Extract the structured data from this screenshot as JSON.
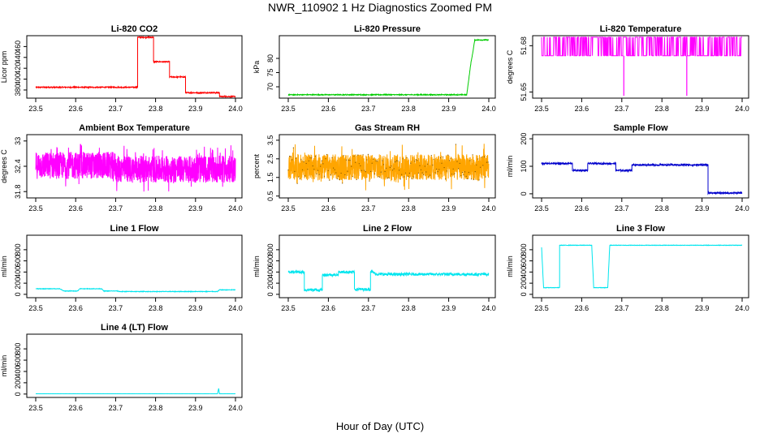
{
  "title": "NWR_110902  1 Hz Diagnostics Zoomed PM",
  "xlabel": "Hour of Day (UTC)",
  "chart_data": [
    {
      "type": "line",
      "title": "Li-820 CO2",
      "ylabel": "Licor ppm",
      "color": "#ff0000",
      "xlim": [
        23.5,
        24.0
      ],
      "xticks": [
        "23.5",
        "23.6",
        "23.7",
        "23.8",
        "23.9",
        "24.0"
      ],
      "ylim": [
        365,
        480
      ],
      "yticks": [
        380,
        400,
        420,
        440,
        460
      ],
      "series": [
        {
          "kind": "step",
          "noise": 1,
          "points": [
            [
              23.5,
              385
            ],
            [
              23.755,
              385
            ],
            [
              23.755,
              477
            ],
            [
              23.795,
              477
            ],
            [
              23.795,
              432
            ],
            [
              23.835,
              432
            ],
            [
              23.835,
              404
            ],
            [
              23.875,
              404
            ],
            [
              23.875,
              375
            ],
            [
              23.96,
              375
            ],
            [
              23.96,
              368
            ],
            [
              24.0,
              368
            ]
          ]
        }
      ]
    },
    {
      "type": "line",
      "title": "Li-820 Pressure",
      "ylabel": "kPa",
      "color": "#00cc00",
      "xlim": [
        23.5,
        24.0
      ],
      "xticks": [
        "23.5",
        "23.6",
        "23.7",
        "23.8",
        "23.9",
        "24.0"
      ],
      "ylim": [
        66,
        88
      ],
      "yticks": [
        70,
        75,
        80
      ],
      "series": [
        {
          "kind": "step",
          "noise": 0.15,
          "points": [
            [
              23.5,
              67.2
            ],
            [
              23.935,
              67.2
            ],
            [
              23.945,
              67.2
            ],
            [
              23.955,
              78
            ],
            [
              23.96,
              82
            ],
            [
              23.965,
              86.5
            ],
            [
              24.0,
              86.5
            ]
          ]
        }
      ]
    },
    {
      "type": "line",
      "title": "Li-820 Temperature",
      "ylabel": "degrees C",
      "color": "#ff00ff",
      "xlim": [
        23.5,
        24.0
      ],
      "xticks": [
        "23.5",
        "23.6",
        "23.7",
        "23.8",
        "23.9",
        "24.0"
      ],
      "ylim": [
        51.646,
        51.6865
      ],
      "yticks": [
        "51.65",
        "51.68"
      ],
      "series": [
        {
          "kind": "toggle",
          "low": 51.6735,
          "high": 51.6855,
          "spikes": [
            [
              23.705,
              51.6475
            ],
            [
              23.862,
              51.6475
            ]
          ]
        }
      ]
    },
    {
      "type": "line",
      "title": "Ambient Box Temperature",
      "ylabel": "degrees C",
      "color": "#ff00ff",
      "xlim": [
        23.5,
        24.0
      ],
      "xticks": [
        "23.5",
        "23.6",
        "23.7",
        "23.8",
        "23.9",
        "24.0"
      ],
      "ylim": [
        31.65,
        33.15
      ],
      "yticks": [
        31.8,
        32.4,
        33.0
      ],
      "series": [
        {
          "kind": "noise",
          "segments": [
            [
              23.5,
              23.7,
              32.42
            ],
            [
              23.7,
              24.0,
              32.33
            ]
          ],
          "amp": 0.32
        }
      ]
    },
    {
      "type": "line",
      "title": "Gas Stream RH",
      "ylabel": "percent",
      "color": "#ffa500",
      "xlim": [
        23.5,
        24.0
      ],
      "xticks": [
        "23.5",
        "23.6",
        "23.7",
        "23.8",
        "23.9",
        "24.0"
      ],
      "ylim": [
        0.4,
        3.8
      ],
      "yticks": [
        0.5,
        1.5,
        2.5,
        3.5
      ],
      "series": [
        {
          "kind": "noise",
          "segments": [
            [
              23.5,
              24.0,
              2.05
            ]
          ],
          "amp": 0.7,
          "dotted": true,
          "dotColor": "#7a5000"
        }
      ]
    },
    {
      "type": "line",
      "title": "Sample Flow",
      "ylabel": "ml/min",
      "color": "#0000cc",
      "xlim": [
        23.5,
        24.0
      ],
      "xticks": [
        "23.5",
        "23.6",
        "23.7",
        "23.8",
        "23.9",
        "24.0"
      ],
      "ylim": [
        -15,
        215
      ],
      "yticks": [
        0,
        100,
        200
      ],
      "series": [
        {
          "kind": "step",
          "noise": 3,
          "points": [
            [
              23.5,
              110
            ],
            [
              23.577,
              110
            ],
            [
              23.577,
              85
            ],
            [
              23.615,
              85
            ],
            [
              23.615,
              110
            ],
            [
              23.685,
              110
            ],
            [
              23.685,
              85
            ],
            [
              23.725,
              85
            ],
            [
              23.725,
              105
            ],
            [
              23.915,
              105
            ],
            [
              23.915,
              3
            ],
            [
              24.0,
              3
            ]
          ]
        }
      ]
    },
    {
      "type": "line",
      "title": "Line 1 Flow",
      "ylabel": "ml/min",
      "color": "#00e5ee",
      "xlim": [
        23.5,
        24.0
      ],
      "xticks": [
        "23.5",
        "23.6",
        "23.7",
        "23.8",
        "23.9",
        "24.0"
      ],
      "ylim": [
        -60,
        1060
      ],
      "yticks": [
        0,
        200,
        400,
        600,
        800
      ],
      "series": [
        {
          "kind": "step",
          "noise": 5,
          "points": [
            [
              23.5,
              100
            ],
            [
              23.56,
              100
            ],
            [
              23.57,
              60
            ],
            [
              23.605,
              60
            ],
            [
              23.61,
              100
            ],
            [
              23.665,
              100
            ],
            [
              23.67,
              60
            ],
            [
              23.705,
              60
            ],
            [
              23.71,
              50
            ],
            [
              23.955,
              50
            ],
            [
              23.96,
              80
            ],
            [
              24.0,
              80
            ]
          ]
        }
      ]
    },
    {
      "type": "line",
      "title": "Line 2 Flow",
      "ylabel": "ml/min",
      "color": "#00e5ee",
      "xlim": [
        23.5,
        24.0
      ],
      "xticks": [
        "23.5",
        "23.6",
        "23.7",
        "23.8",
        "23.9",
        "24.0"
      ],
      "ylim": [
        -60,
        1060
      ],
      "yticks": [
        0,
        200,
        400,
        600,
        800
      ],
      "series": [
        {
          "kind": "step",
          "noise": 25,
          "points": [
            [
              23.5,
              400
            ],
            [
              23.54,
              400
            ],
            [
              23.54,
              80
            ],
            [
              23.585,
              80
            ],
            [
              23.585,
              350
            ],
            [
              23.625,
              350
            ],
            [
              23.625,
              400
            ],
            [
              23.665,
              400
            ],
            [
              23.665,
              90
            ],
            [
              23.705,
              90
            ],
            [
              23.705,
              420
            ],
            [
              23.72,
              360
            ],
            [
              24.0,
              360
            ]
          ]
        }
      ]
    },
    {
      "type": "line",
      "title": "Line 3 Flow",
      "ylabel": "ml/min",
      "color": "#00e5ee",
      "xlim": [
        23.5,
        24.0
      ],
      "xticks": [
        "23.5",
        "23.6",
        "23.7",
        "23.8",
        "23.9",
        "24.0"
      ],
      "ylim": [
        -60,
        1060
      ],
      "yticks": [
        0,
        200,
        400,
        600,
        800
      ],
      "series": [
        {
          "kind": "step",
          "noise": 4,
          "points": [
            [
              23.5,
              840
            ],
            [
              23.505,
              120
            ],
            [
              23.545,
              120
            ],
            [
              23.545,
              880
            ],
            [
              23.625,
              880
            ],
            [
              23.63,
              120
            ],
            [
              23.665,
              120
            ],
            [
              23.67,
              880
            ],
            [
              24.0,
              880
            ]
          ]
        }
      ]
    },
    {
      "type": "line",
      "title": "Line 4 (LT) Flow",
      "ylabel": "ml/min",
      "color": "#00e5ee",
      "xlim": [
        23.5,
        24.0
      ],
      "xticks": [
        "23.5",
        "23.6",
        "23.7",
        "23.8",
        "23.9",
        "24.0"
      ],
      "ylim": [
        -60,
        1060
      ],
      "yticks": [
        0,
        200,
        400,
        600,
        800
      ],
      "series": [
        {
          "kind": "step",
          "noise": 1,
          "points": [
            [
              23.5,
              5
            ],
            [
              23.955,
              5
            ],
            [
              23.958,
              100
            ],
            [
              23.96,
              5
            ],
            [
              24.0,
              5
            ]
          ]
        }
      ]
    }
  ]
}
